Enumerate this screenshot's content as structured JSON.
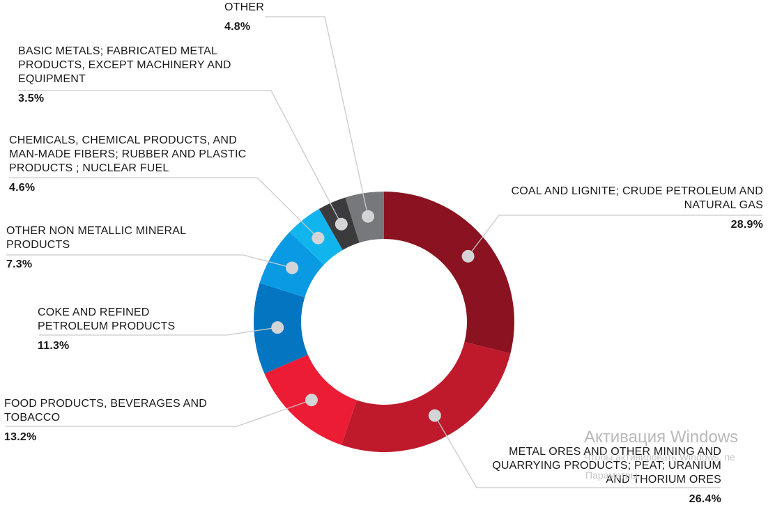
{
  "chart_data": {
    "type": "pie",
    "donut": true,
    "slices": [
      {
        "label": "COAL AND LIGNITE; CRUDE PETROLEUM AND\nNATURAL GAS",
        "value": 28.9,
        "pct_text": "28.9%",
        "color": "#8b1220"
      },
      {
        "label": "METAL ORES AND OTHER MINING AND\nQUARRYING PRODUCTS; PEAT; URANIUM\nAND THORIUM ORES",
        "value": 26.4,
        "pct_text": "26.4%",
        "color": "#be1a2c"
      },
      {
        "label": "FOOD PRODUCTS, BEVERAGES AND\nTOBACCO",
        "value": 13.2,
        "pct_text": "13.2%",
        "color": "#ec1c35"
      },
      {
        "label": "COKE AND REFINED\nPETROLEUM PRODUCTS",
        "value": 11.3,
        "pct_text": "11.3%",
        "color": "#0475c1"
      },
      {
        "label": "OTHER NON METALLIC MINERAL\nPRODUCTS",
        "value": 7.3,
        "pct_text": "7.3%",
        "color": "#0a9ae4"
      },
      {
        "label": "CHEMICALS, CHEMICAL PRODUCTS, AND\nMAN-MADE FIBERS; RUBBER AND PLASTIC\nPRODUCTS ; NUCLEAR FUEL",
        "value": 4.6,
        "pct_text": "4.6%",
        "color": "#12b4ee"
      },
      {
        "label": "BASIC METALS; FABRICATED METAL\nPRODUCTS, EXCEPT MACHINERY AND\nEQUIPMENT",
        "value": 3.5,
        "pct_text": "3.5%",
        "color": "#3b3b3d"
      },
      {
        "label": "OTHER",
        "value": 4.8,
        "pct_text": "4.8%",
        "color": "#77787b"
      }
    ],
    "start_angle_deg": 0,
    "direction": "clockwise",
    "legend": "none"
  },
  "watermark": {
    "title": "Активация Windows",
    "line1": "Чтобы активировать Windows, пе",
    "line2": "Параметры."
  }
}
